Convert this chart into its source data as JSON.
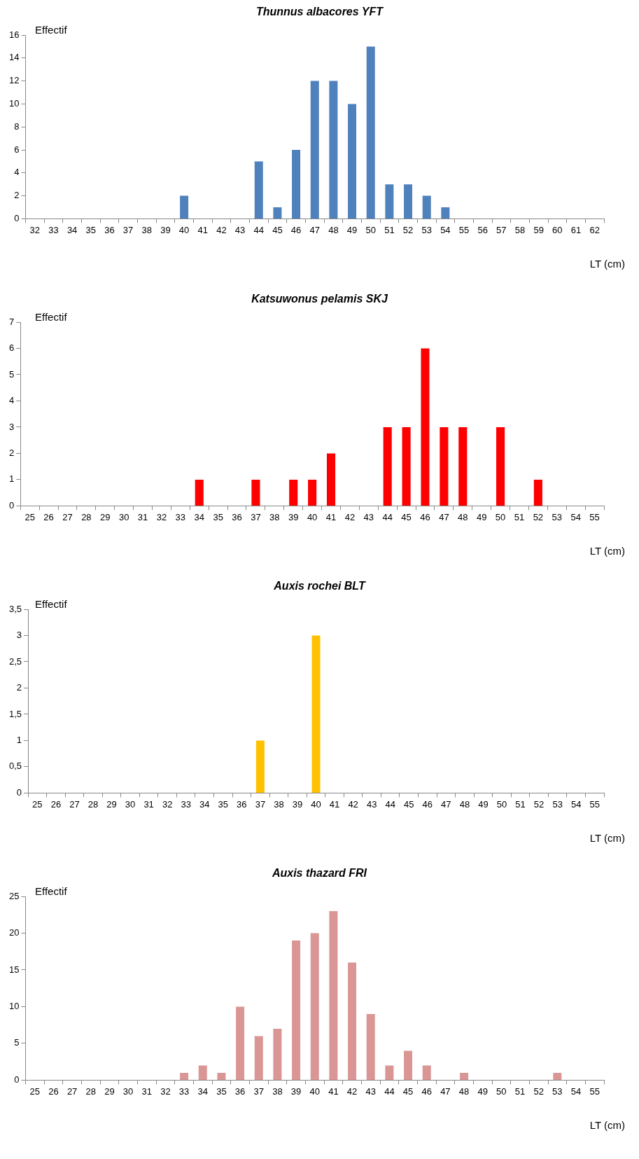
{
  "chart_data": [
    {
      "type": "bar",
      "title": "Thunnus albacores YFT",
      "ylabel": "Effectif",
      "xlabel": "LT (cm)",
      "categories": [
        "32",
        "33",
        "34",
        "35",
        "36",
        "37",
        "38",
        "39",
        "40",
        "41",
        "42",
        "43",
        "44",
        "45",
        "46",
        "47",
        "48",
        "49",
        "50",
        "51",
        "52",
        "53",
        "54",
        "55",
        "56",
        "57",
        "58",
        "59",
        "60",
        "61",
        "62"
      ],
      "values": [
        0,
        0,
        0,
        0,
        0,
        0,
        0,
        0,
        2,
        0,
        0,
        0,
        5,
        1,
        6,
        12,
        12,
        10,
        15,
        3,
        3,
        2,
        1,
        0,
        0,
        0,
        0,
        0,
        0,
        0,
        0
      ],
      "color": "#4f81bd",
      "ylim": [
        0,
        16
      ],
      "yticks": [
        0,
        2,
        4,
        6,
        8,
        10,
        12,
        14,
        16
      ],
      "grid": false
    },
    {
      "type": "bar",
      "title": "Katsuwonus pelamis SKJ",
      "ylabel": "Effectif",
      "xlabel": "LT (cm)",
      "categories": [
        "25",
        "26",
        "27",
        "28",
        "29",
        "30",
        "31",
        "32",
        "33",
        "34",
        "35",
        "36",
        "37",
        "38",
        "39",
        "40",
        "41",
        "42",
        "43",
        "44",
        "45",
        "46",
        "47",
        "48",
        "49",
        "50",
        "51",
        "52",
        "53",
        "54",
        "55"
      ],
      "values": [
        0,
        0,
        0,
        0,
        0,
        0,
        0,
        0,
        0,
        1,
        0,
        0,
        1,
        0,
        1,
        1,
        2,
        0,
        0,
        3,
        3,
        6,
        3,
        3,
        0,
        3,
        0,
        1,
        0,
        0,
        0
      ],
      "color": "#ff0000",
      "ylim": [
        0,
        7
      ],
      "yticks": [
        0,
        1,
        2,
        3,
        4,
        5,
        6,
        7
      ],
      "grid": false
    },
    {
      "type": "bar",
      "title": "Auxis rochei BLT",
      "ylabel": "Effectif",
      "xlabel": "LT (cm)",
      "categories": [
        "25",
        "26",
        "27",
        "28",
        "29",
        "30",
        "31",
        "32",
        "33",
        "34",
        "35",
        "36",
        "37",
        "38",
        "39",
        "40",
        "41",
        "42",
        "43",
        "44",
        "45",
        "46",
        "47",
        "48",
        "49",
        "50",
        "51",
        "52",
        "53",
        "54",
        "55"
      ],
      "values": [
        0,
        0,
        0,
        0,
        0,
        0,
        0,
        0,
        0,
        0,
        0,
        0,
        1,
        0,
        0,
        3,
        0,
        0,
        0,
        0,
        0,
        0,
        0,
        0,
        0,
        0,
        0,
        0,
        0,
        0,
        0
      ],
      "color": "#ffc000",
      "ylim": [
        0,
        3.5
      ],
      "yticks": [
        0,
        {
          "value": 0.5,
          "label": "0,5"
        },
        1,
        {
          "value": 1.5,
          "label": "1,5"
        },
        2,
        {
          "value": 2.5,
          "label": "2,5"
        },
        3,
        {
          "value": 3.5,
          "label": "3,5"
        }
      ],
      "grid": false
    },
    {
      "type": "bar",
      "title": "Auxis thazard FRI",
      "ylabel": "Effectif",
      "xlabel": "LT (cm)",
      "categories": [
        "25",
        "26",
        "27",
        "28",
        "29",
        "30",
        "31",
        "32",
        "33",
        "34",
        "35",
        "36",
        "37",
        "38",
        "39",
        "40",
        "41",
        "42",
        "43",
        "44",
        "45",
        "46",
        "47",
        "48",
        "49",
        "50",
        "51",
        "52",
        "53",
        "54",
        "55"
      ],
      "values": [
        0,
        0,
        0,
        0,
        0,
        0,
        0,
        0,
        1,
        2,
        1,
        10,
        6,
        7,
        19,
        20,
        23,
        16,
        9,
        2,
        4,
        2,
        0,
        1,
        0,
        0,
        0,
        0,
        1,
        0,
        0
      ],
      "color": "#d99694",
      "ylim": [
        0,
        25
      ],
      "yticks": [
        0,
        5,
        10,
        15,
        20,
        25
      ],
      "grid": false
    }
  ]
}
